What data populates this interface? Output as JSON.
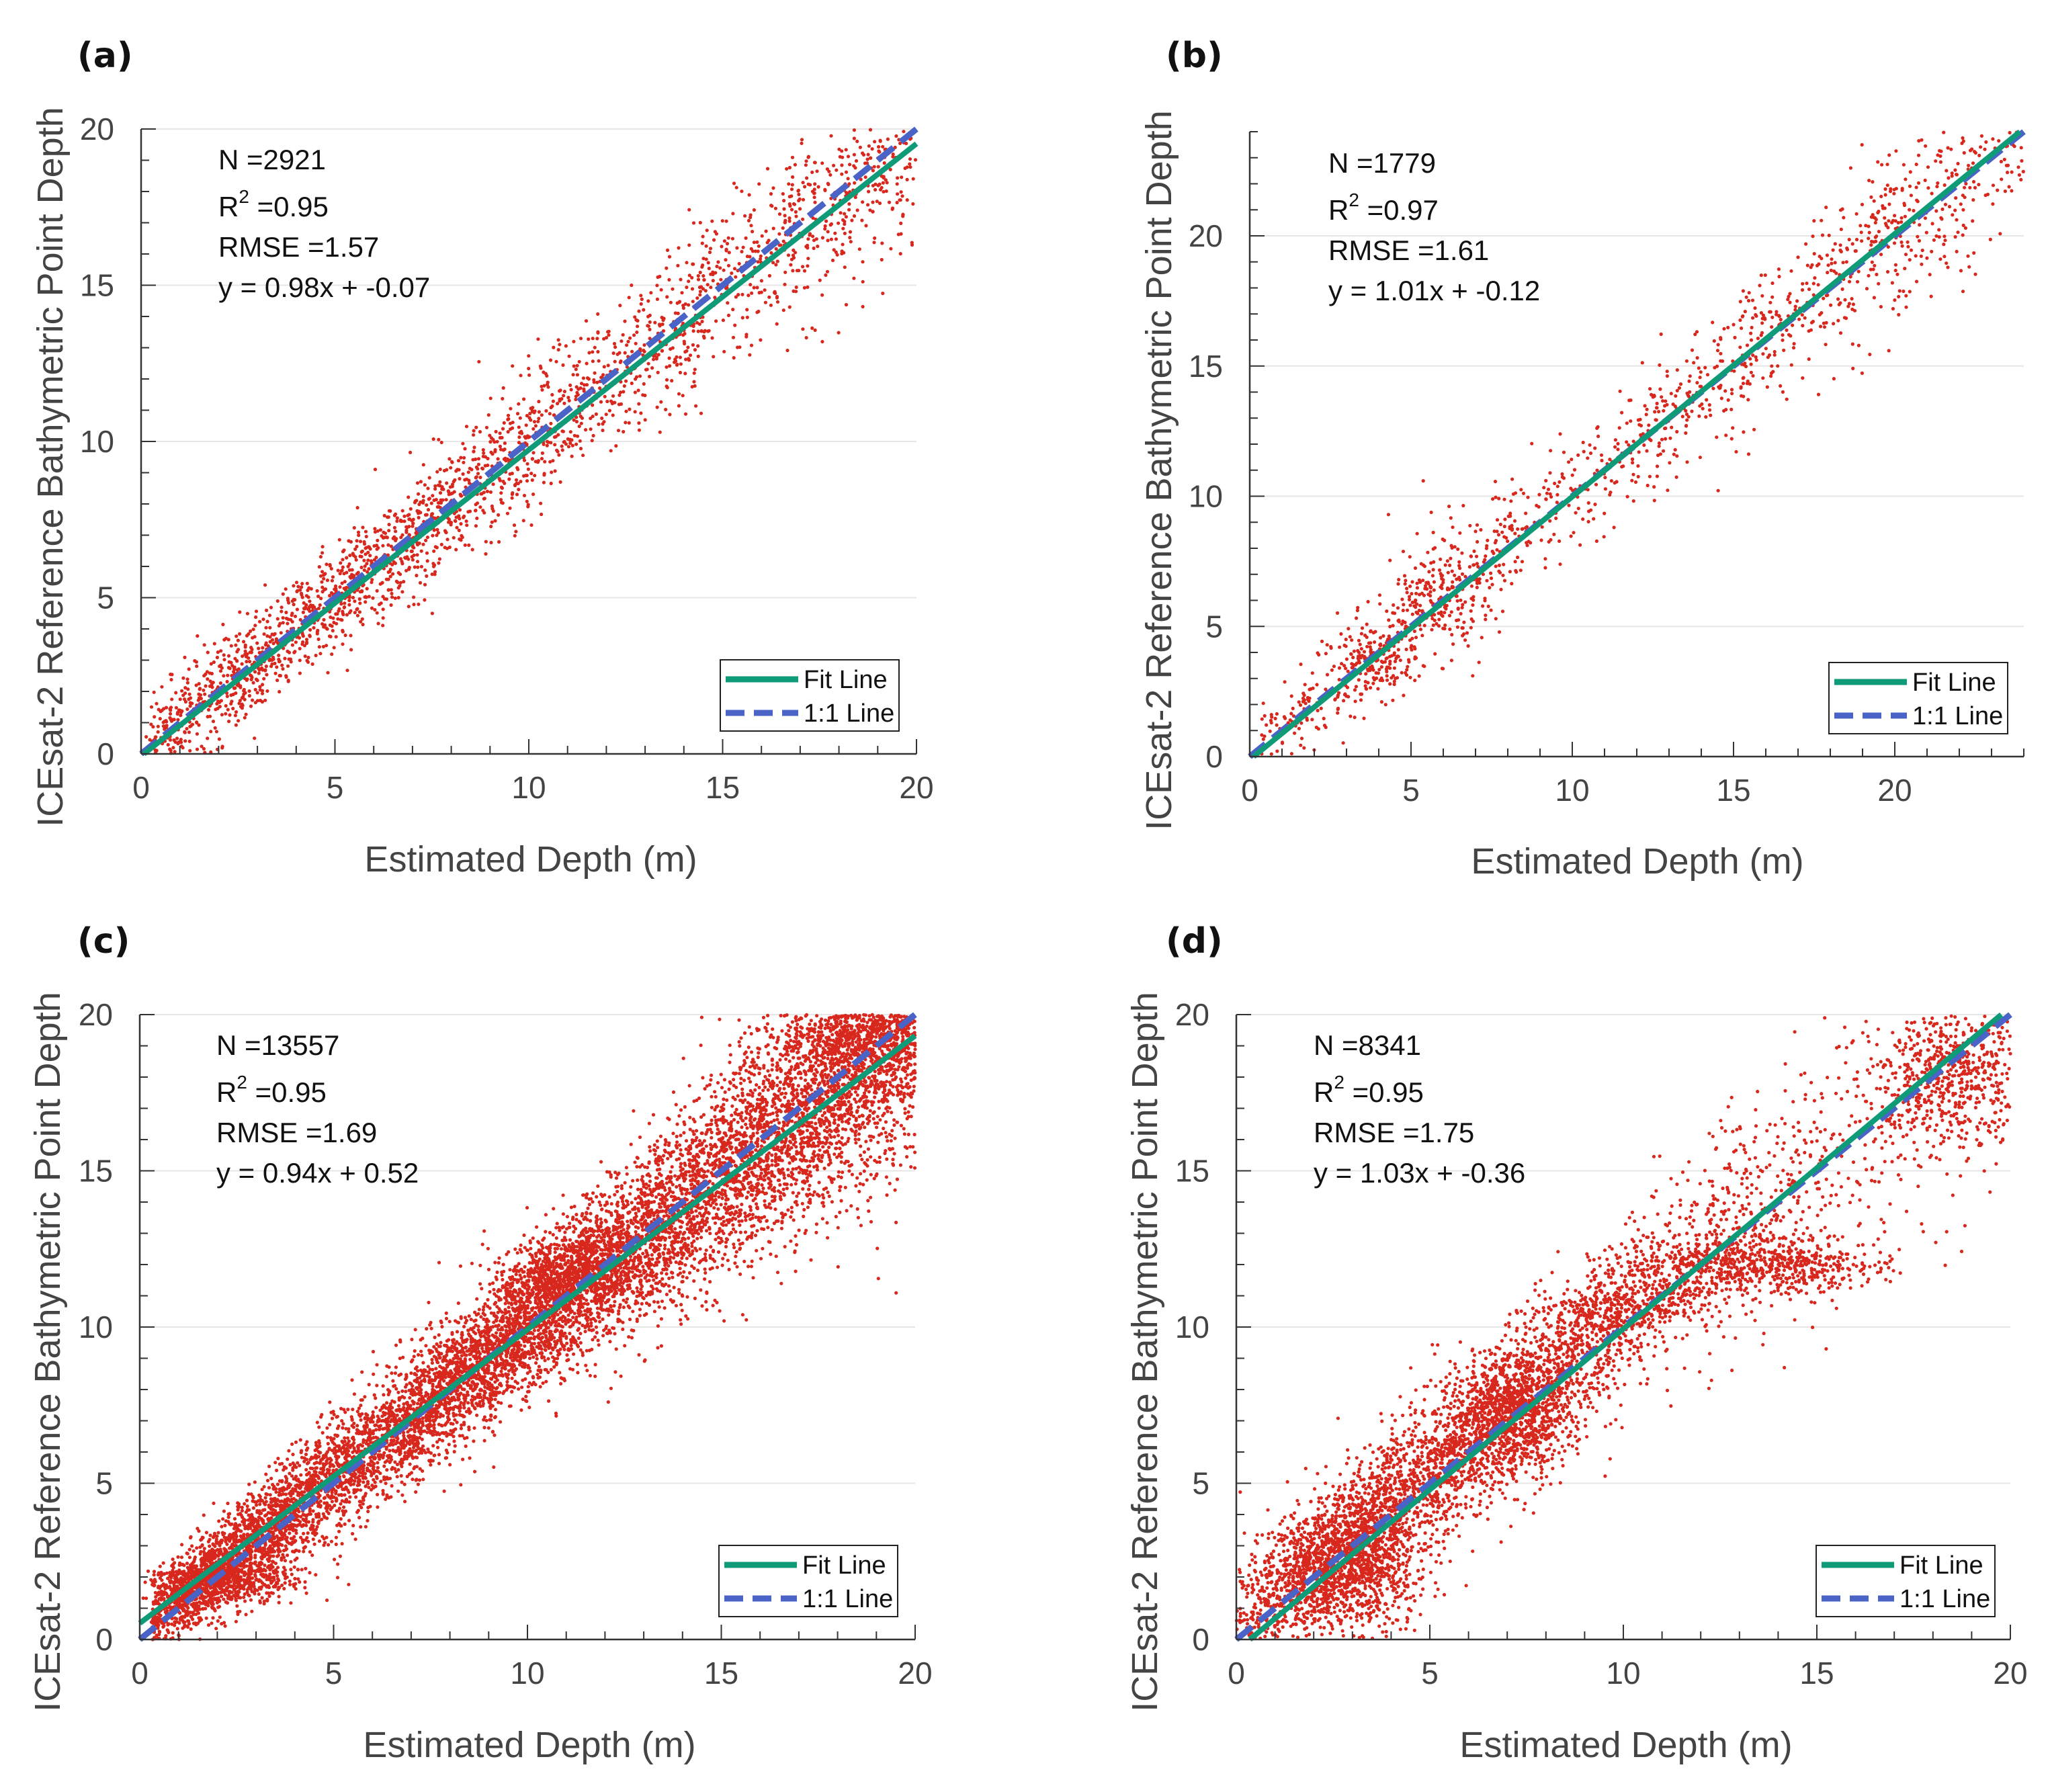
{
  "colors": {
    "points": "#d8281e",
    "fit_line": "#0f9a78",
    "one_to_one_line": "#4a63c6",
    "grid": "#e6e6e6",
    "axis": "#333333"
  },
  "chart_data": [
    {
      "panel": "(a)",
      "type": "scatter",
      "xlabel": "Estimated Depth (m)",
      "ylabel": "ICEsat-2 Reference Bathymetric Point Depth",
      "xlim": [
        0,
        20
      ],
      "ylim": [
        0,
        20
      ],
      "xticks": [
        "0",
        "5",
        "10",
        "15",
        "20"
      ],
      "yticks": [
        "0",
        "5",
        "10",
        "15",
        "20"
      ],
      "grid": "horizontal",
      "legend_position": "bottom-right",
      "stats": {
        "n": "N =2921",
        "r2_prefix": "R",
        "r2_sup": "2",
        "r2_value": " =0.95",
        "rmse": "RMSE =1.57",
        "equation": "y = 0.98x + -0.07"
      },
      "fit": {
        "slope": 0.98,
        "intercept": -0.07
      },
      "point_count": 2921,
      "cloud": {
        "slope": 0.99,
        "intercept": 0.05,
        "xrange": [
          0.1,
          20
        ],
        "density": [
          [
            0,
            1
          ],
          [
            3,
            1.3
          ],
          [
            6,
            1.4
          ],
          [
            12,
            0.9
          ],
          [
            20,
            1.0
          ]
        ],
        "spread": [
          [
            0,
            0.9
          ],
          [
            5,
            1.0
          ],
          [
            10,
            1.3
          ],
          [
            15,
            1.6
          ],
          [
            20,
            2.1
          ]
        ],
        "clusters": []
      },
      "legend": {
        "fit_label": "Fit Line",
        "one_label": "1:1 Line"
      }
    },
    {
      "panel": "(b)",
      "type": "scatter",
      "xlabel": "Estimated Depth (m)",
      "ylabel": "ICEsat-2 Reference Bathymetric Point Depth",
      "xlim": [
        0,
        24
      ],
      "ylim": [
        0,
        24
      ],
      "xticks": [
        "0",
        "5",
        "10",
        "15",
        "20"
      ],
      "yticks": [
        "0",
        "5",
        "10",
        "15",
        "20"
      ],
      "grid": "horizontal",
      "legend_position": "bottom-right",
      "stats": {
        "n": "N =1779",
        "r2_prefix": "R",
        "r2_sup": "2",
        "r2_value": " =0.97",
        "rmse": "RMSE =1.61",
        "equation": "y = 1.01x + -0.12"
      },
      "fit": {
        "slope": 1.01,
        "intercept": -0.12
      },
      "point_count": 1779,
      "cloud": {
        "slope": 1.0,
        "intercept": 0.1,
        "xrange": [
          0.3,
          24
        ],
        "density": [
          [
            0,
            0.6
          ],
          [
            4,
            1.5
          ],
          [
            6,
            1.4
          ],
          [
            10,
            0.9
          ],
          [
            20,
            1.3
          ],
          [
            24,
            1.0
          ]
        ],
        "spread": [
          [
            0,
            0.8
          ],
          [
            5,
            1.3
          ],
          [
            12,
            1.3
          ],
          [
            20,
            2.0
          ],
          [
            24,
            2.2
          ]
        ],
        "clusters": [
          {
            "x": 4.0,
            "y": 3.5,
            "sx": 0.6,
            "sy": 0.7,
            "n": 90
          },
          {
            "x": 6.0,
            "y": 6.5,
            "sx": 0.8,
            "sy": 1.3,
            "n": 110
          }
        ]
      },
      "legend": {
        "fit_label": "Fit Line",
        "one_label": "1:1 Line"
      }
    },
    {
      "panel": "(c)",
      "type": "scatter",
      "xlabel": "Estimated Depth (m)",
      "ylabel": "ICEsat-2 Reference Bathymetric Point Depth",
      "xlim": [
        0,
        20
      ],
      "ylim": [
        0,
        20
      ],
      "xticks": [
        "0",
        "5",
        "10",
        "15",
        "20"
      ],
      "yticks": [
        "0",
        "5",
        "10",
        "15",
        "20"
      ],
      "grid": "horizontal",
      "legend_position": "bottom-right",
      "stats": {
        "n": "N =13557",
        "r2_prefix": "R",
        "r2_sup": "2",
        "r2_value": " =0.95",
        "rmse": "RMSE =1.69",
        "equation": "y = 0.94x + 0.52"
      },
      "fit": {
        "slope": 0.94,
        "intercept": 0.52
      },
      "point_count": 13557,
      "cloud": {
        "slope": 0.97,
        "intercept": 0.3,
        "xrange": [
          0.3,
          20
        ],
        "density": [
          [
            0,
            0.6
          ],
          [
            2,
            1.3
          ],
          [
            5,
            0.9
          ],
          [
            10,
            1.3
          ],
          [
            15,
            1.2
          ],
          [
            20,
            1.4
          ]
        ],
        "spread": [
          [
            0,
            0.7
          ],
          [
            5,
            1.1
          ],
          [
            10,
            1.2
          ],
          [
            15,
            1.8
          ],
          [
            20,
            2.3
          ]
        ],
        "clusters": [
          {
            "x": 2.3,
            "y": 1.9,
            "sx": 1.0,
            "sy": 0.35,
            "n": 450
          },
          {
            "x": 11.0,
            "y": 11.8,
            "sx": 0.9,
            "sy": 0.6,
            "n": 500
          },
          {
            "x": 18.5,
            "y": 19.3,
            "sx": 1.2,
            "sy": 0.6,
            "n": 500
          }
        ]
      },
      "legend": {
        "fit_label": "Fit Line",
        "one_label": "1:1 Line"
      }
    },
    {
      "panel": "(d)",
      "type": "scatter",
      "xlabel": "Estimated Depth (m)",
      "ylabel": "ICEsat-2 Reference Bathymetric Point Depth",
      "xlim": [
        0,
        20
      ],
      "ylim": [
        0,
        20
      ],
      "xticks": [
        "0",
        "5",
        "10",
        "15",
        "20"
      ],
      "yticks": [
        "0",
        "5",
        "10",
        "15",
        "20"
      ],
      "grid": "horizontal",
      "legend_position": "bottom-right",
      "stats": {
        "n": "N =8341",
        "r2_prefix": "R",
        "r2_sup": "2",
        "r2_value": " =0.95",
        "rmse": "RMSE =1.75",
        "equation": "y = 1.03x + -0.36"
      },
      "fit": {
        "slope": 1.03,
        "intercept": -0.36
      },
      "point_count": 8341,
      "cloud": {
        "slope": 1.0,
        "intercept": 0.3,
        "xrange": [
          0.0,
          20
        ],
        "density": [
          [
            0,
            0.7
          ],
          [
            3,
            1.8
          ],
          [
            7,
            1.6
          ],
          [
            11,
            0.7
          ],
          [
            16,
            0.3
          ],
          [
            20,
            0.5
          ]
        ],
        "spread": [
          [
            0,
            1.1
          ],
          [
            5,
            1.4
          ],
          [
            10,
            1.4
          ],
          [
            15,
            2.5
          ],
          [
            20,
            2.8
          ]
        ],
        "clusters": [
          {
            "x": 2.8,
            "y": 2.2,
            "sx": 1.0,
            "sy": 1.0,
            "n": 900
          },
          {
            "x": 7.2,
            "y": 7.3,
            "sx": 0.8,
            "sy": 1.0,
            "n": 700
          },
          {
            "x": 13.5,
            "y": 12.0,
            "sx": 1.6,
            "sy": 0.45,
            "n": 650
          },
          {
            "x": 10.0,
            "y": 10.7,
            "sx": 1.0,
            "sy": 0.4,
            "n": 250
          },
          {
            "x": 18.5,
            "y": 18.0,
            "sx": 1.0,
            "sy": 1.1,
            "n": 500
          }
        ]
      },
      "legend": {
        "fit_label": "Fit Line",
        "one_label": "1:1 Line"
      }
    }
  ]
}
